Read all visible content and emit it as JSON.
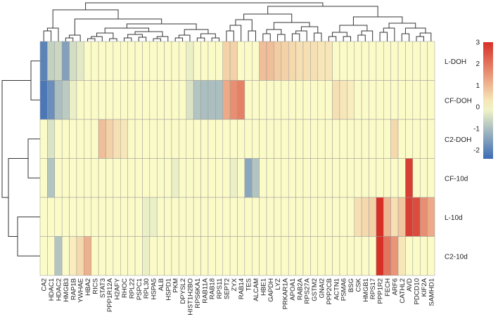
{
  "chart_data": {
    "type": "heatmap",
    "title": "",
    "rows": [
      "L-DOH",
      "CF-DOH",
      "C2-DOH",
      "CF-10d",
      "L-10d",
      "C2-10d"
    ],
    "columns": [
      "CA2",
      "HDAC1",
      "HDAC2",
      "HMGB3",
      "RAP1B",
      "YWHAE",
      "HBA2",
      "RICS",
      "STAT3",
      "PPP1R12A",
      "H2AFY",
      "RHOC",
      "RPL22",
      "PSPC1",
      "RPL30",
      "HSPA5",
      "ALB",
      "HSPD1",
      "PKM",
      "DPYSL2",
      "HIST1H2BO",
      "RPS6KA1",
      "RAB11A",
      "RAB18",
      "RPS11",
      "SEPT2",
      "ZYX",
      "RAB14",
      "TES",
      "ALCAM",
      "HBE1",
      "GAPDH",
      "LYZ",
      "PRKAR1A",
      "APOA1",
      "RAB2A",
      "RPS27A",
      "GSTM2",
      "GNAI2",
      "PPP2CB",
      "ACTN1",
      "PSMA6",
      "BSG",
      "CSK",
      "HMGB1",
      "RPS17",
      "PPP1R2",
      "FECH",
      "ARF6",
      "CATHL2",
      "AVD",
      "PDCD10",
      "KIF2A",
      "SAMHD1"
    ],
    "values": [
      [
        -2.0,
        -0.7,
        -0.6,
        -1.5,
        -0.5,
        -0.3,
        0,
        0,
        0,
        0,
        0,
        0,
        0,
        0,
        0,
        0,
        0,
        0,
        0,
        0,
        -0.2,
        0,
        0,
        0,
        0,
        0.6,
        0.6,
        0,
        0,
        0,
        0.9,
        0.9,
        0.7,
        0.6,
        0.5,
        0.4,
        0.4,
        0.4,
        0.3,
        0.3,
        0,
        0,
        0,
        0,
        0,
        0,
        0,
        0,
        0,
        0,
        0,
        0,
        0,
        0
      ],
      [
        -2.2,
        -1.8,
        -1.0,
        -0.8,
        -0.2,
        0,
        0,
        0,
        0,
        0,
        0,
        0,
        0,
        0,
        0,
        0,
        0,
        0,
        0,
        0,
        -0.4,
        -0.9,
        -1.0,
        -1.0,
        -1.0,
        1.2,
        1.6,
        1.8,
        0,
        0,
        0,
        0,
        0,
        0,
        0,
        0,
        0,
        0,
        0,
        0,
        0.4,
        0.3,
        0.2,
        0,
        0,
        0,
        0,
        0,
        0,
        0,
        0,
        0,
        0,
        0
      ],
      [
        0,
        -0.4,
        0,
        0,
        0,
        0,
        0,
        0,
        0.9,
        0.6,
        0.4,
        0.3,
        0,
        0,
        0,
        0,
        0,
        0,
        0,
        0,
        0,
        0,
        0,
        0,
        0,
        0,
        0,
        0,
        0,
        0,
        0,
        0,
        0,
        0,
        0,
        0,
        0,
        0,
        0,
        0,
        0,
        0,
        0,
        0,
        0,
        0,
        0,
        0,
        0.5,
        0,
        0,
        0,
        0,
        0
      ],
      [
        0,
        -0.9,
        0,
        0,
        0,
        0,
        0,
        0,
        0,
        0,
        0,
        0,
        0,
        0,
        0,
        0,
        0,
        0,
        -0.2,
        0,
        0,
        0,
        0,
        0,
        0,
        0,
        -0.2,
        0,
        -1.4,
        -0.9,
        0,
        0,
        0,
        0,
        0,
        0,
        0,
        0,
        0,
        0,
        0,
        0,
        0,
        0,
        0,
        0,
        0,
        0,
        0,
        0,
        2.8,
        0,
        0,
        0
      ],
      [
        0,
        0,
        0,
        0,
        0,
        0,
        0,
        0,
        0,
        0,
        0,
        0,
        0,
        0,
        -0.2,
        -0.2,
        0,
        0,
        0,
        0,
        0,
        0,
        0,
        0,
        0,
        0,
        0,
        0,
        0,
        0,
        0,
        0,
        0,
        0,
        0,
        0,
        0,
        0,
        0,
        0,
        0,
        0,
        0,
        0.4,
        0.5,
        0.6,
        3.0,
        1.0,
        0.4,
        0.8,
        2.8,
        2.6,
        1.6,
        1.2
      ],
      [
        0,
        0,
        -0.9,
        0,
        0.2,
        0.5,
        1.1,
        0,
        0,
        0,
        0,
        0,
        0,
        0,
        -0.2,
        0,
        0,
        0,
        0,
        0,
        0,
        0,
        0,
        0,
        0,
        0,
        0,
        0,
        0,
        0,
        0,
        0,
        0,
        0,
        0,
        0,
        0,
        0,
        0,
        0,
        0,
        0,
        0,
        0,
        0,
        0,
        3.0,
        2.0,
        1.5,
        0.3,
        0,
        0,
        0,
        0
      ]
    ],
    "color_scale": {
      "min": -2.4,
      "max": 3.0,
      "low": "#3b6bb5",
      "mid": "#fbfbc8",
      "high": "#d73027"
    },
    "legend_ticks": [
      "3",
      "2",
      "1",
      "0",
      "-1",
      "-2"
    ],
    "legend_tick_values": [
      3,
      2,
      1,
      0,
      -1,
      -2
    ],
    "row_dendrogram": true,
    "column_dendrogram": true
  }
}
